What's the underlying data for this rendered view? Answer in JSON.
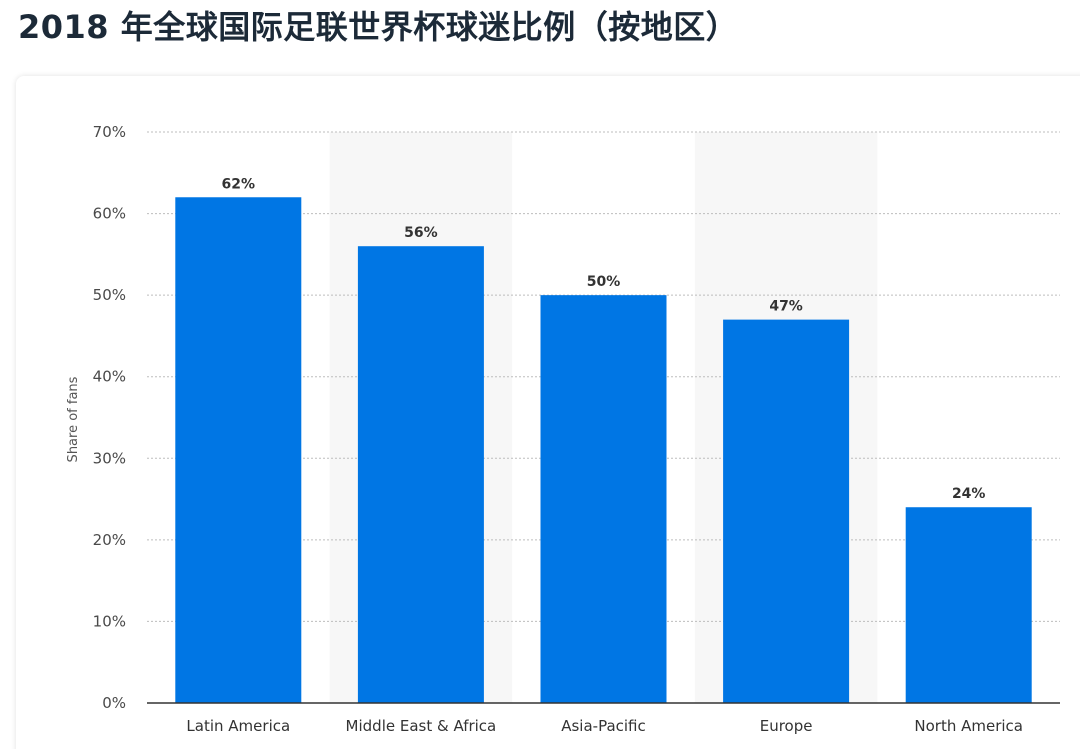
{
  "page": {
    "title": "2018 年全球国际足联世界杯球迷比例（按地区）"
  },
  "colors": {
    "bar": "#0076e4",
    "grid": "#bdbdbd",
    "band": "#f7f7f7",
    "axis": "#333333"
  },
  "chart_data": {
    "type": "bar",
    "title": "2018 年全球国际足联世界杯球迷比例（按地区）",
    "categories": [
      "Latin America",
      "Middle East & Africa",
      "Asia-Pacific",
      "Europe",
      "North America"
    ],
    "values": [
      62,
      56,
      50,
      47,
      24
    ],
    "data_labels": [
      "62%",
      "56%",
      "50%",
      "47%",
      "24%"
    ],
    "xlabel": "",
    "ylabel": "Share of fans",
    "ylim": [
      0,
      70
    ],
    "yticks": [
      0,
      10,
      20,
      30,
      40,
      50,
      60,
      70
    ],
    "ytick_labels": [
      "0%",
      "10%",
      "20%",
      "30%",
      "40%",
      "50%",
      "60%",
      "70%"
    ],
    "grid": true,
    "legend": "none"
  }
}
